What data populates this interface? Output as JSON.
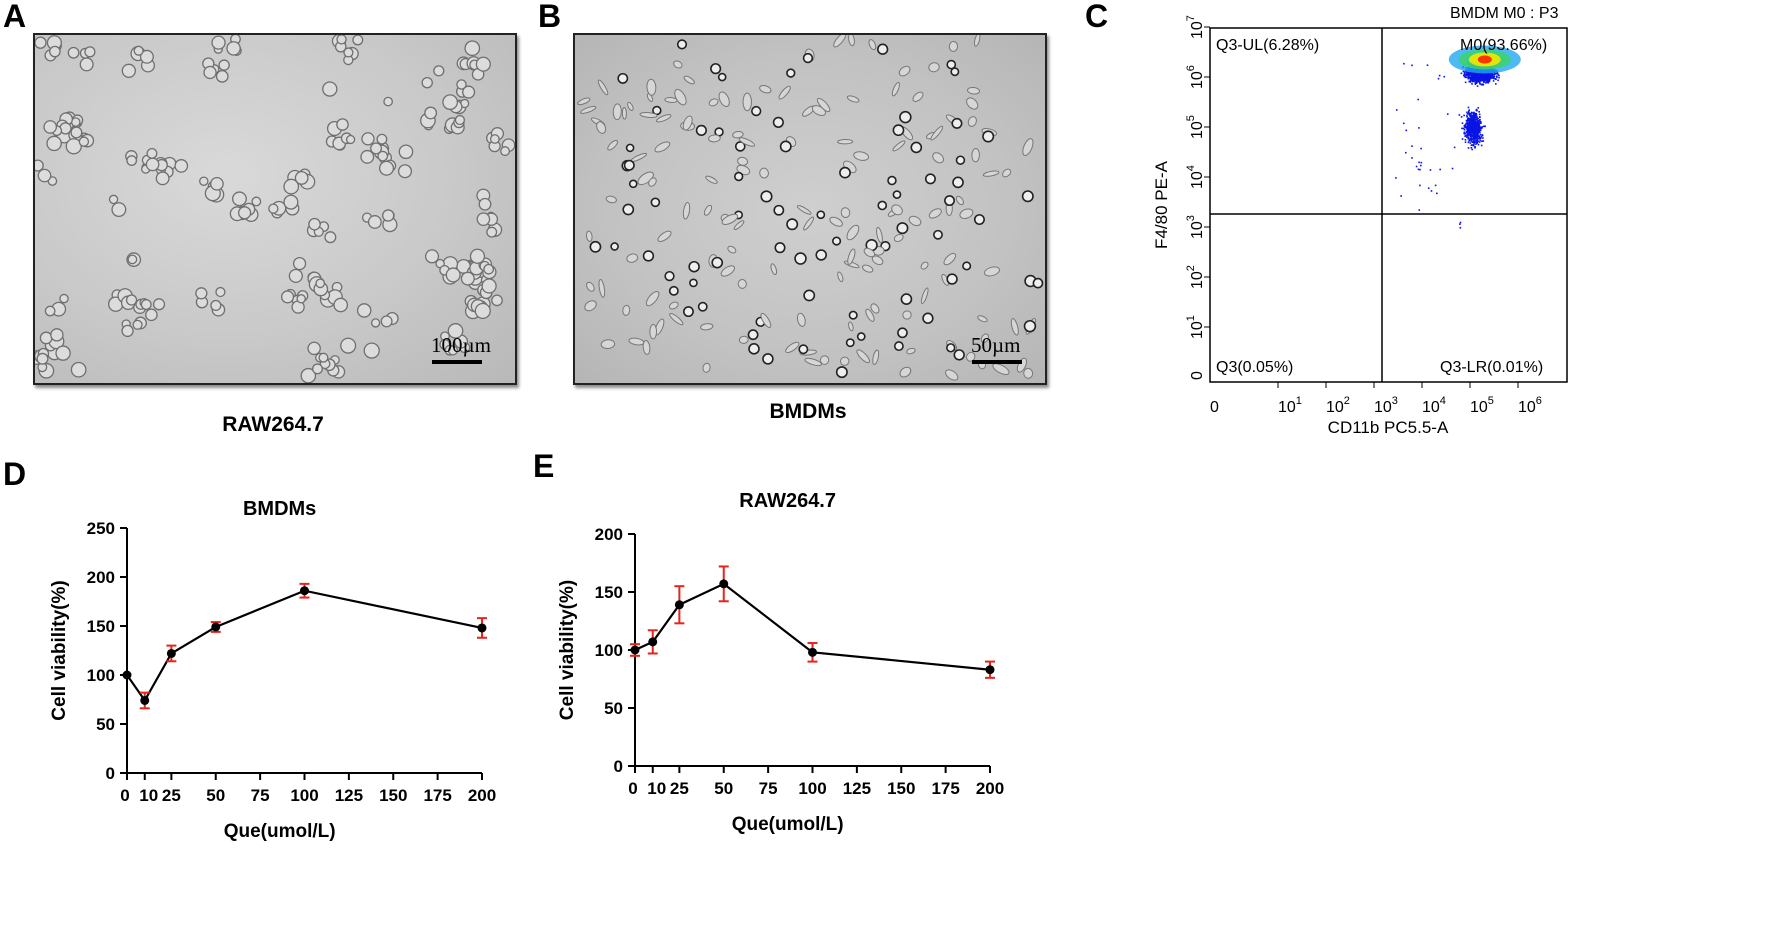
{
  "panels": {
    "a": {
      "letter": "A",
      "caption": "RAW264.7",
      "scale": "100µm"
    },
    "b": {
      "letter": "B",
      "caption": "BMDMs",
      "scale": "50µm"
    },
    "c": {
      "letter": "C"
    },
    "d": {
      "letter": "D"
    },
    "e": {
      "letter": "E"
    }
  },
  "flow": {
    "title": "BMDM M0 : P3",
    "xlabel": "CD11b PC5.5-A",
    "ylabel": "F4/80 PE-A",
    "ul": "Q3-UL(6.28%)",
    "ur": "M0(93.66%)",
    "ll": "Q3(0.05%)",
    "lr": "Q3-LR(0.01%)",
    "x_ticks": [
      "0",
      "10",
      "10",
      "10",
      "10",
      "10",
      "10"
    ],
    "x_exps": [
      "",
      "1",
      "2",
      "3",
      "4",
      "5",
      "6"
    ],
    "y_ticks": [
      "0",
      "10",
      "10",
      "10",
      "10",
      "10",
      "10",
      "10"
    ],
    "y_exps": [
      "",
      "1",
      "2",
      "3",
      "4",
      "5",
      "6",
      "7"
    ],
    "colors": {
      "dots": "#0a14e6",
      "hot": "#ff2a00",
      "warm": "#f4e600",
      "mid": "#39d46a",
      "cool": "#22a7f0"
    }
  },
  "chart_data": [
    {
      "type": "line",
      "title": "BMDMs",
      "xlabel": "Que(umol/L)",
      "ylabel": "Cell viability(%)",
      "x": [
        0,
        10,
        25,
        50,
        100,
        200
      ],
      "y": [
        100,
        74,
        122,
        149,
        186,
        148
      ],
      "err": [
        0,
        8,
        8,
        5,
        7,
        10
      ],
      "xlim": [
        0,
        200
      ],
      "ylim": [
        0,
        250
      ],
      "xticks": [
        0,
        10,
        25,
        50,
        75,
        100,
        125,
        150,
        175,
        200
      ],
      "yticks": [
        0,
        50,
        100,
        150,
        200,
        250
      ],
      "colors": {
        "line": "#000000",
        "error": "#e8231b"
      }
    },
    {
      "type": "line",
      "title": "RAW264.7",
      "xlabel": "Que(umol/L)",
      "ylabel": "Cell viability(%)",
      "x": [
        0,
        10,
        25,
        50,
        100,
        200
      ],
      "y": [
        100,
        107,
        139,
        157,
        98,
        83
      ],
      "err": [
        5,
        10,
        16,
        15,
        8,
        7
      ],
      "xlim": [
        0,
        200
      ],
      "ylim": [
        0,
        200
      ],
      "xticks": [
        0,
        10,
        25,
        50,
        75,
        100,
        125,
        150,
        175,
        200
      ],
      "yticks": [
        0,
        50,
        100,
        150,
        200
      ],
      "colors": {
        "line": "#000000",
        "error": "#e8231b"
      }
    }
  ]
}
